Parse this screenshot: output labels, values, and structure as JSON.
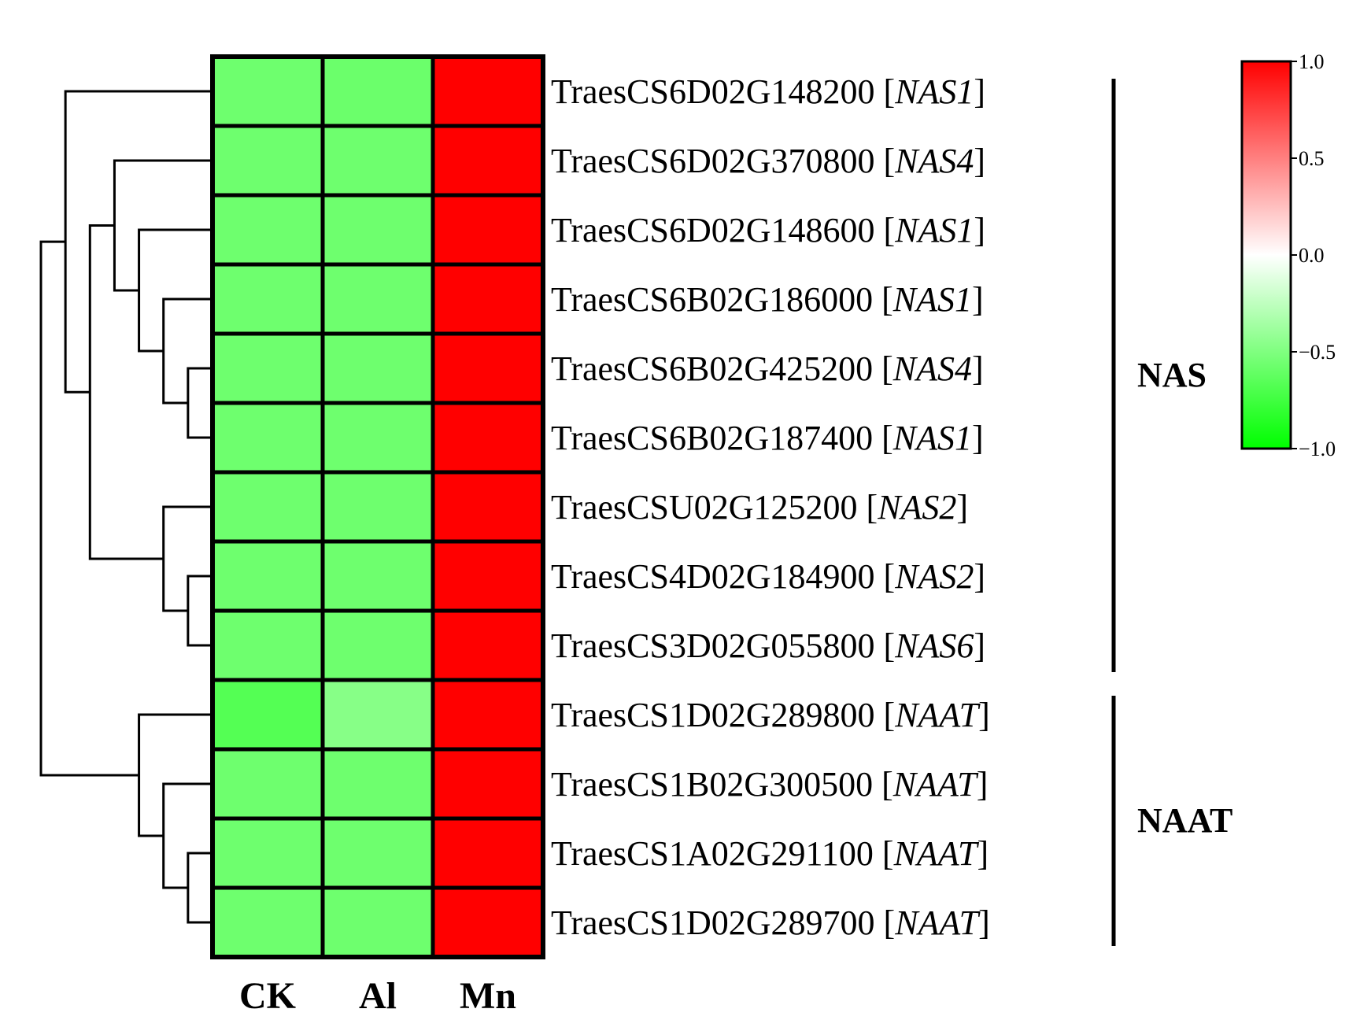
{
  "chart_data": {
    "type": "heatmap",
    "columns": [
      "CK",
      "Al",
      "Mn"
    ],
    "rows": [
      {
        "id": "TraesCS6D02G148200",
        "symbol": "NAS1",
        "values": [
          -0.57,
          -0.58,
          1.0
        ]
      },
      {
        "id": "TraesCS6D02G370800",
        "symbol": "NAS4",
        "values": [
          -0.57,
          -0.57,
          1.0
        ]
      },
      {
        "id": "TraesCS6D02G148600",
        "symbol": "NAS1",
        "values": [
          -0.57,
          -0.57,
          1.0
        ]
      },
      {
        "id": "TraesCS6B02G186000",
        "symbol": "NAS1",
        "values": [
          -0.57,
          -0.57,
          1.0
        ]
      },
      {
        "id": "TraesCS6B02G425200",
        "symbol": "NAS4",
        "values": [
          -0.57,
          -0.57,
          1.0
        ]
      },
      {
        "id": "TraesCS6B02G187400",
        "symbol": "NAS1",
        "values": [
          -0.57,
          -0.57,
          1.0
        ]
      },
      {
        "id": "TraesCSU02G125200",
        "symbol": "NAS2",
        "values": [
          -0.57,
          -0.57,
          1.0
        ]
      },
      {
        "id": "TraesCS4D02G184900",
        "symbol": "NAS2",
        "values": [
          -0.57,
          -0.57,
          1.0
        ]
      },
      {
        "id": "TraesCS3D02G055800",
        "symbol": "NAS6",
        "values": [
          -0.57,
          -0.57,
          1.0
        ]
      },
      {
        "id": "TraesCS1D02G289800",
        "symbol": "NAAT",
        "values": [
          -0.67,
          -0.47,
          1.0
        ]
      },
      {
        "id": "TraesCS1B02G300500",
        "symbol": "NAAT",
        "values": [
          -0.57,
          -0.57,
          1.0
        ]
      },
      {
        "id": "TraesCS1A02G291100",
        "symbol": "NAAT",
        "values": [
          -0.57,
          -0.57,
          1.0
        ]
      },
      {
        "id": "TraesCS1D02G289700",
        "symbol": "NAAT",
        "values": [
          -0.57,
          -0.57,
          1.0
        ]
      }
    ],
    "groups": [
      {
        "label": "NAS",
        "rows": [
          0,
          8
        ]
      },
      {
        "label": "NAAT",
        "rows": [
          9,
          12
        ]
      }
    ],
    "color_scale": {
      "min": -1.0,
      "max": 1.0,
      "min_color": "#00ff00",
      "mid_color": "#ffffff",
      "max_color": "#ff0000",
      "ticks": [
        "1.0",
        "0.5",
        "0.0",
        "−0.5",
        "−1.0"
      ],
      "tick_values": [
        1.0,
        0.5,
        0.0,
        -0.5,
        -1.0
      ]
    },
    "dendrogram": {
      "merges": [
        [
          4,
          5
        ],
        [
          3,
          "m0"
        ],
        [
          2,
          "m1"
        ],
        [
          1,
          "m2"
        ],
        [
          7,
          8
        ],
        [
          6,
          "m4"
        ],
        [
          "m3",
          "m5"
        ],
        [
          0,
          "m6"
        ],
        [
          11,
          12
        ],
        [
          10,
          "m8"
        ],
        [
          9,
          "m9"
        ],
        [
          "m7",
          "m10"
        ]
      ]
    }
  }
}
